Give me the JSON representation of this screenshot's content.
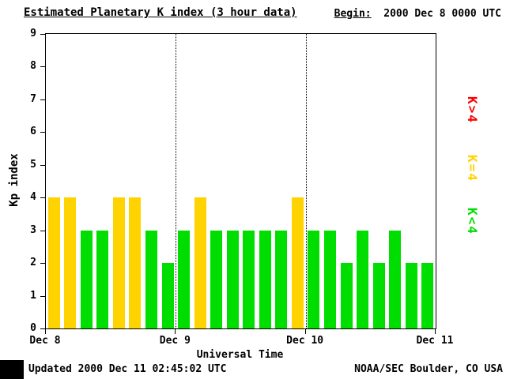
{
  "begin": {
    "label": "Begin:",
    "value": "2000 Dec 8 0000 UTC"
  },
  "footer": {
    "updated": "Updated 2000 Dec 11 02:45:02 UTC",
    "organization": "NOAA/SEC Boulder, CO USA"
  },
  "chart_data": {
    "type": "bar",
    "title": "Estimated Planetary K index (3 hour data)",
    "xlabel": "Universal Time",
    "ylabel": "Kp index",
    "ylim": [
      0,
      9
    ],
    "yticks": [
      0,
      1,
      2,
      3,
      4,
      5,
      6,
      7,
      8,
      9
    ],
    "x_day_labels": [
      "Dec 8",
      "Dec 9",
      "Dec 10",
      "Dec 11"
    ],
    "bars_per_day": 8,
    "interval_hours": 3,
    "values": [
      4,
      4,
      3,
      3,
      4,
      4,
      3,
      2,
      3,
      4,
      3,
      3,
      3,
      3,
      3,
      4,
      3,
      3,
      2,
      3,
      2,
      3,
      2,
      2
    ],
    "colors": {
      "below": "#00dd00",
      "equal": "#ffd300",
      "above": "#ff0000"
    },
    "legend": [
      {
        "label": "K>4",
        "color": "#ff0000"
      },
      {
        "label": "K=4",
        "color": "#ffd300"
      },
      {
        "label": "K<4",
        "color": "#00dd00"
      }
    ],
    "grid": "dotted vertical lines at day boundaries",
    "legend_position": "right"
  }
}
